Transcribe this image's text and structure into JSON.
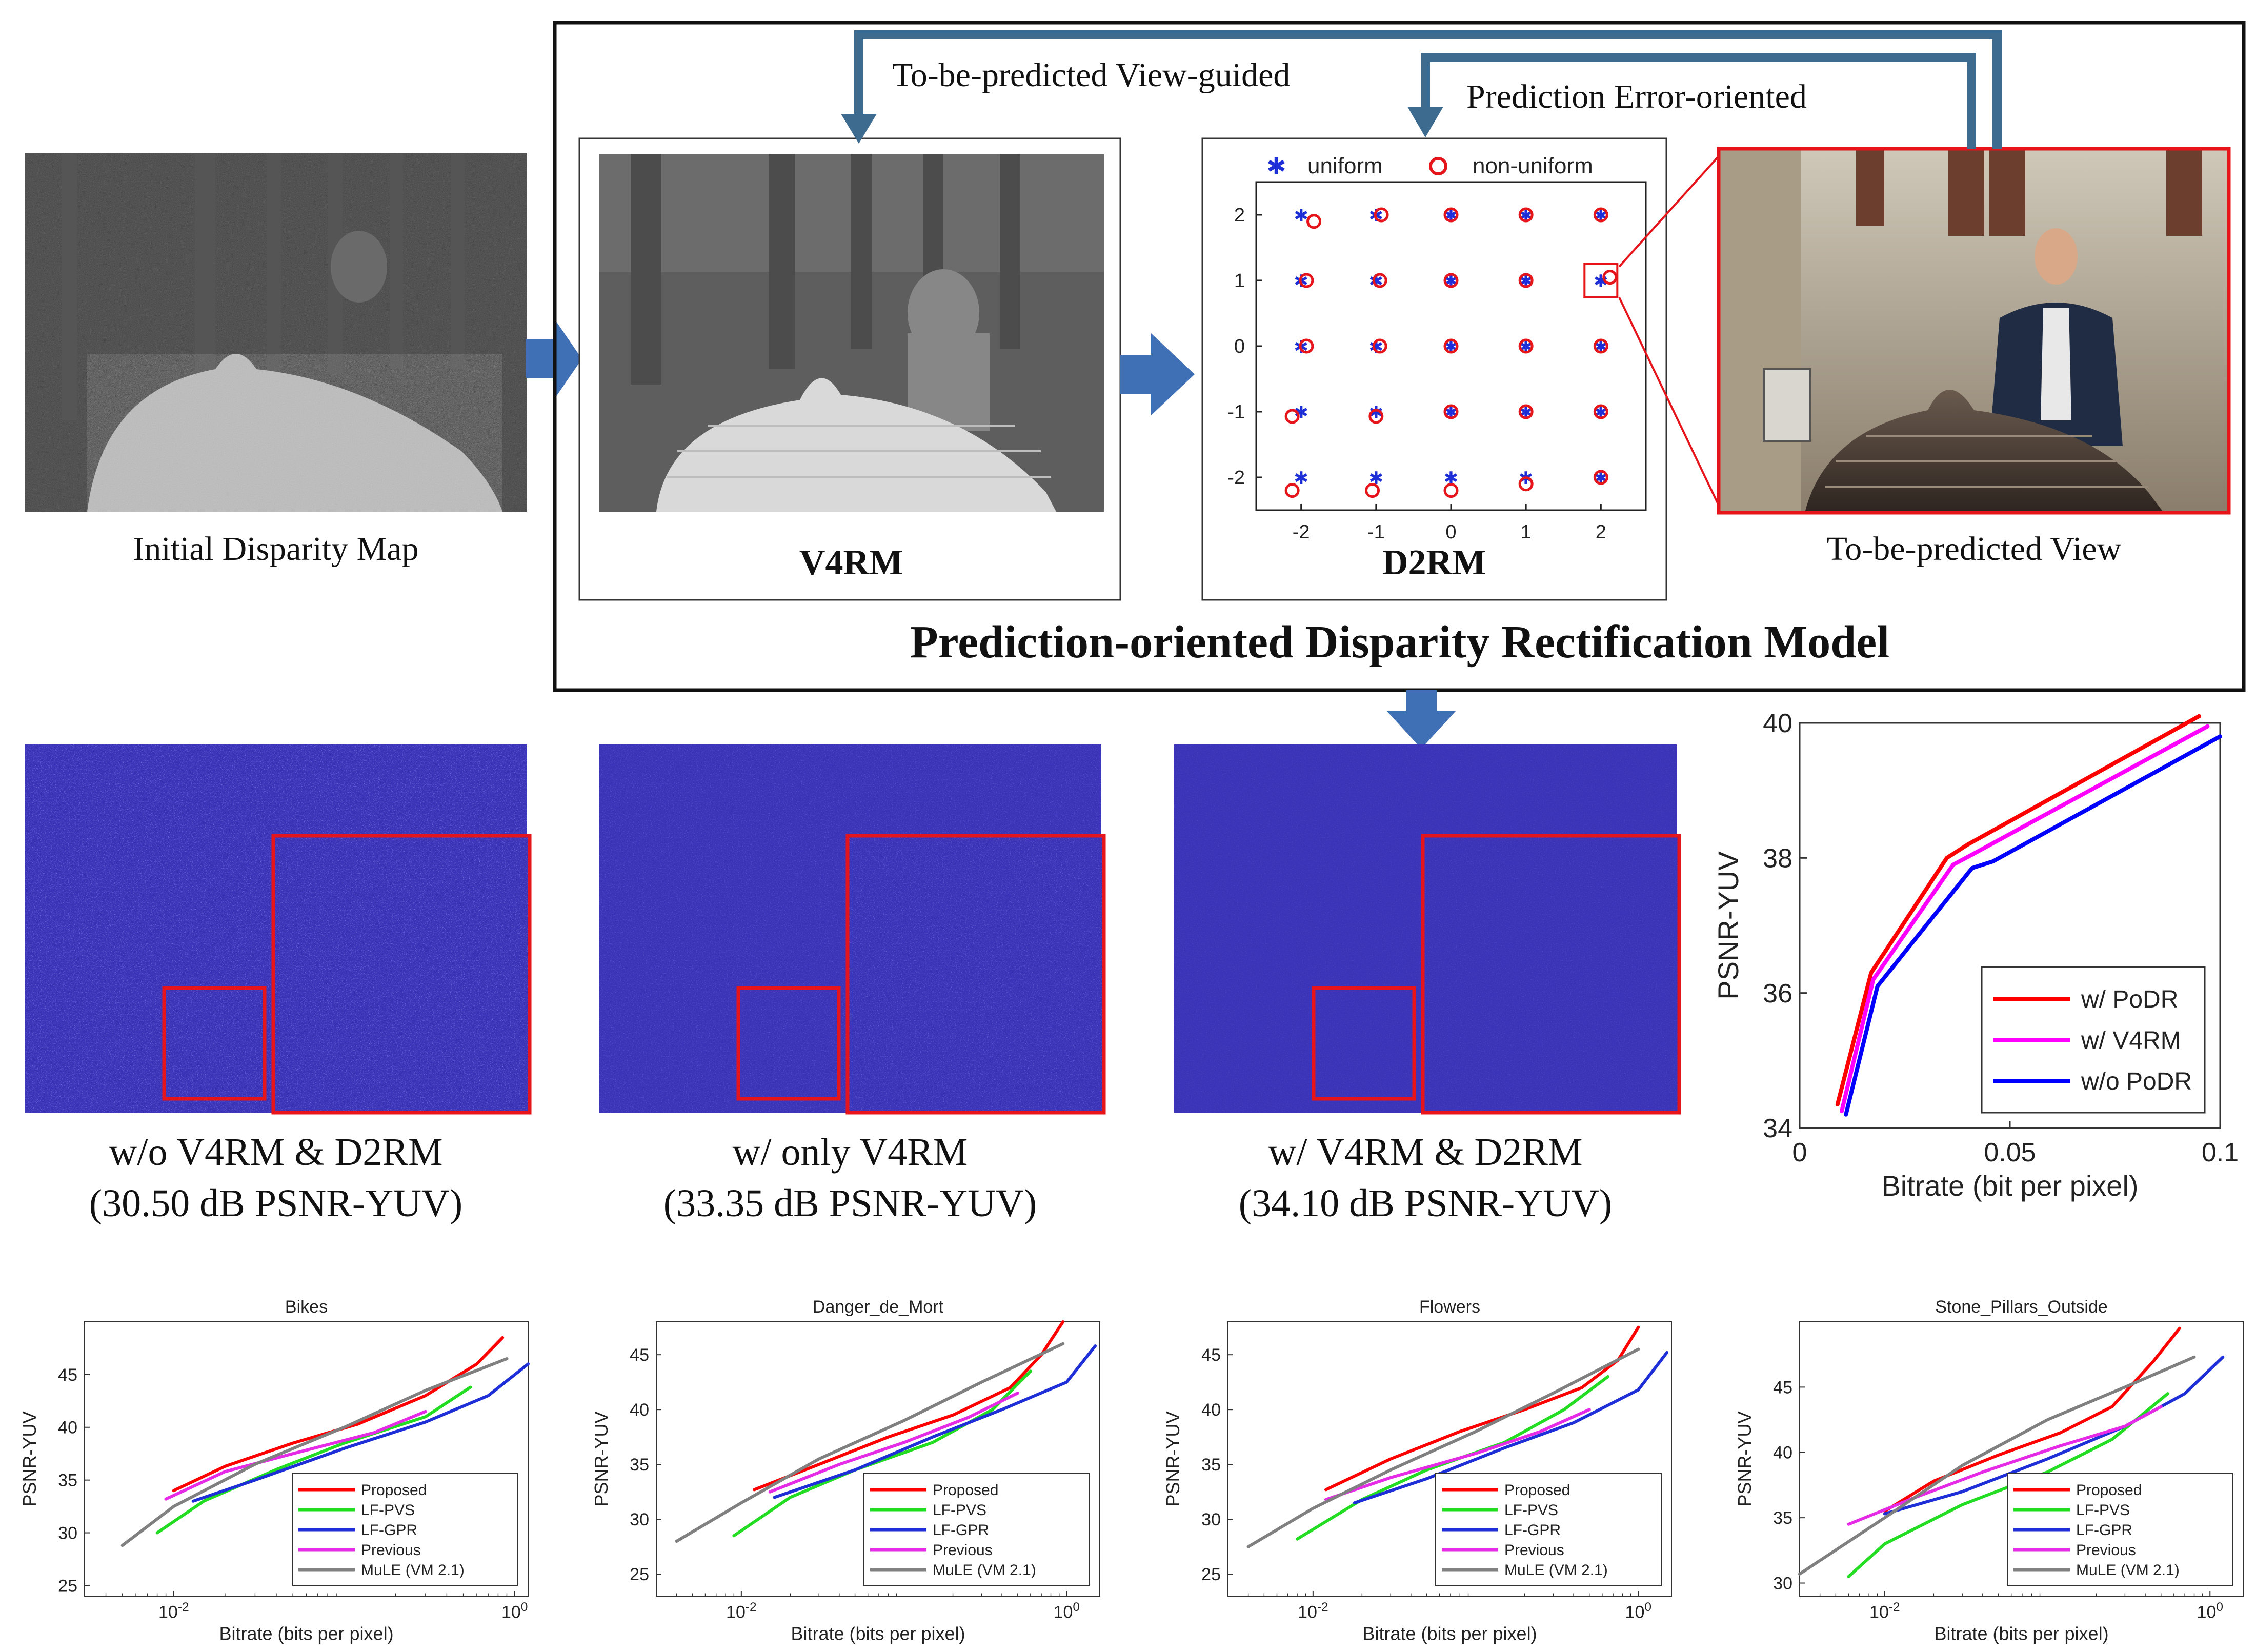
{
  "colors": {
    "arrow": "#3f6fb5",
    "feedback": "#3d6b8f",
    "highlight": "#e6141b",
    "error_map_bg": "#3b33b8",
    "proposed": "#ff0000",
    "lf_pvs": "#22dd22",
    "lf_gpr": "#1f2fd8",
    "previous": "#e62be6",
    "mule": "#808080",
    "w_v4rm": "#ff00ff",
    "wo_podr": "#0000ff"
  },
  "top": {
    "initial_caption": "Initial Disparity Map",
    "v4rm_label": "V4RM",
    "d2rm_label": "D2RM",
    "view_caption": "To-be-predicted View",
    "model_title": "Prediction-oriented Disparity Rectification Model",
    "feedback_view": "To-be-predicted View-guided",
    "feedback_error": "Prediction Error-oriented"
  },
  "d2rm": {
    "legend_uniform": "uniform",
    "legend_nonuniform": "non-uniform",
    "ticks": [
      "-2",
      "-1",
      "0",
      "1",
      "2"
    ],
    "offsets": [
      [
        [
          -2,
          2
        ],
        [
          -1.83,
          1.9
        ]
      ],
      [
        [
          -1,
          2
        ],
        [
          -0.93,
          2
        ]
      ],
      [
        [
          0,
          2
        ],
        [
          0,
          2
        ]
      ],
      [
        [
          1,
          2
        ],
        [
          1,
          2
        ]
      ],
      [
        [
          2,
          2
        ],
        [
          2,
          2
        ]
      ],
      [
        [
          -2,
          1
        ],
        [
          -1.93,
          1
        ]
      ],
      [
        [
          -1,
          1
        ],
        [
          -0.95,
          1
        ]
      ],
      [
        [
          0,
          1
        ],
        [
          0,
          1
        ]
      ],
      [
        [
          1,
          1
        ],
        [
          1,
          1
        ]
      ],
      [
        [
          2,
          1
        ],
        [
          2.12,
          1.05
        ]
      ],
      [
        [
          -2,
          0
        ],
        [
          -1.93,
          0
        ]
      ],
      [
        [
          -1,
          0
        ],
        [
          -0.95,
          0
        ]
      ],
      [
        [
          0,
          0
        ],
        [
          0,
          0
        ]
      ],
      [
        [
          1,
          0
        ],
        [
          1,
          0
        ]
      ],
      [
        [
          2,
          0
        ],
        [
          2,
          0
        ]
      ],
      [
        [
          -2,
          -1
        ],
        [
          -2.12,
          -1.07
        ]
      ],
      [
        [
          -1,
          -1
        ],
        [
          -1,
          -1.07
        ]
      ],
      [
        [
          0,
          -1
        ],
        [
          0,
          -1
        ]
      ],
      [
        [
          1,
          -1
        ],
        [
          1,
          -1
        ]
      ],
      [
        [
          2,
          -1
        ],
        [
          2,
          -1
        ]
      ],
      [
        [
          -2,
          -2
        ],
        [
          -2.12,
          -2.2
        ]
      ],
      [
        [
          -1,
          -2
        ],
        [
          -1.05,
          -2.2
        ]
      ],
      [
        [
          0,
          -2
        ],
        [
          0,
          -2.2
        ]
      ],
      [
        [
          1,
          -2
        ],
        [
          1,
          -2.1
        ]
      ],
      [
        [
          2,
          -2
        ],
        [
          2,
          -2
        ]
      ]
    ]
  },
  "error_maps": [
    {
      "line1": "w/o V4RM & D2RM",
      "line2": "(30.50 dB PSNR-YUV)",
      "intensity": 1.0
    },
    {
      "line1": "w/ only V4RM",
      "line2": "(33.35 dB PSNR-YUV)",
      "intensity": 0.6
    },
    {
      "line1": "w/ V4RM & D2RM",
      "line2": "(34.10 dB PSNR-YUV)",
      "intensity": 0.3
    }
  ],
  "chart_data": [
    {
      "type": "line",
      "title": "",
      "xlabel": "Bitrate (bit per pixel)",
      "ylabel": "PSNR-YUV",
      "xlim": [
        0,
        0.1
      ],
      "ylim": [
        34,
        40
      ],
      "xticks": [
        "0",
        "0.05",
        "0.1"
      ],
      "yticks": [
        "34",
        "36",
        "38",
        "40"
      ],
      "legend_position": "bottom-right",
      "series": [
        {
          "name": "w/ PoDR",
          "color": "#ff0000",
          "x": [
            0.009,
            0.017,
            0.035,
            0.04,
            0.095
          ],
          "y": [
            34.35,
            36.3,
            38.0,
            38.2,
            40.1
          ]
        },
        {
          "name": "w/ V4RM",
          "color": "#ff00ff",
          "x": [
            0.01,
            0.0175,
            0.0365,
            0.041,
            0.097
          ],
          "y": [
            34.25,
            36.2,
            37.9,
            38.05,
            39.95
          ]
        },
        {
          "name": "w/o PoDR",
          "color": "#0000ff",
          "x": [
            0.011,
            0.0185,
            0.041,
            0.046,
            0.1
          ],
          "y": [
            34.2,
            36.1,
            37.85,
            37.95,
            39.8
          ]
        }
      ]
    },
    {
      "type": "line",
      "title": "Bikes",
      "xlabel": "Bitrate (bits per pixel)",
      "ylabel": "PSNR-YUV",
      "xscale": "log",
      "xlim": [
        0.003,
        1.2
      ],
      "ylim": [
        24,
        50
      ],
      "yticks": [
        25,
        30,
        35,
        40,
        45
      ],
      "xticks": [
        {
          "value": 0.01,
          "label": "10-2"
        },
        {
          "value": 1,
          "label": "100"
        }
      ],
      "legend_position": "bottom-right",
      "series": [
        {
          "name": "Proposed",
          "color": "#ff0000",
          "x": [
            0.01,
            0.02,
            0.05,
            0.12,
            0.3,
            0.6,
            0.85
          ],
          "y": [
            34,
            36.3,
            38.5,
            40.3,
            43,
            46,
            48.5
          ]
        },
        {
          "name": "LF-PVS",
          "color": "#22dd22",
          "x": [
            0.008,
            0.015,
            0.04,
            0.1,
            0.3,
            0.55
          ],
          "y": [
            30,
            33,
            36,
            38.5,
            41,
            43.8
          ]
        },
        {
          "name": "LF-GPR",
          "color": "#1f2fd8",
          "x": [
            0.013,
            0.03,
            0.1,
            0.3,
            0.7,
            1.2
          ],
          "y": [
            33,
            35,
            38,
            40.5,
            43,
            46
          ]
        },
        {
          "name": "Previous",
          "color": "#e62be6",
          "x": [
            0.009,
            0.02,
            0.05,
            0.15,
            0.3
          ],
          "y": [
            33.2,
            35.8,
            37.5,
            39.5,
            41.5
          ]
        },
        {
          "name": "MuLE (VM 2.1)",
          "color": "#808080",
          "x": [
            0.005,
            0.01,
            0.03,
            0.1,
            0.3,
            0.9
          ],
          "y": [
            28.8,
            32.5,
            36.5,
            40,
            43.5,
            46.5
          ]
        }
      ]
    },
    {
      "type": "line",
      "title": "Danger_de_Mort",
      "xlabel": "Bitrate (bits per pixel)",
      "ylabel": "PSNR-YUV",
      "xscale": "log",
      "xlim": [
        0.003,
        1.6
      ],
      "ylim": [
        23,
        48
      ],
      "yticks": [
        25,
        30,
        35,
        40,
        45
      ],
      "xticks": [
        {
          "value": 0.01,
          "label": "10-2"
        },
        {
          "value": 1,
          "label": "100"
        }
      ],
      "legend_position": "bottom-right",
      "series": [
        {
          "name": "Proposed",
          "color": "#ff0000",
          "x": [
            0.012,
            0.03,
            0.08,
            0.2,
            0.45,
            0.7,
            0.95
          ],
          "y": [
            32.7,
            35,
            37.5,
            39.5,
            42,
            45,
            48
          ]
        },
        {
          "name": "LF-PVS",
          "color": "#22dd22",
          "x": [
            0.009,
            0.02,
            0.05,
            0.15,
            0.35,
            0.6
          ],
          "y": [
            28.5,
            32,
            34.5,
            37,
            40,
            43.5
          ]
        },
        {
          "name": "LF-GPR",
          "color": "#1f2fd8",
          "x": [
            0.016,
            0.05,
            0.15,
            0.4,
            1,
            1.5
          ],
          "y": [
            32,
            34.5,
            37.5,
            40,
            42.5,
            45.8
          ]
        },
        {
          "name": "Previous",
          "color": "#e62be6",
          "x": [
            0.015,
            0.04,
            0.1,
            0.25,
            0.5
          ],
          "y": [
            32.5,
            35,
            37,
            39.3,
            41.5
          ]
        },
        {
          "name": "MuLE (VM 2.1)",
          "color": "#808080",
          "x": [
            0.004,
            0.01,
            0.03,
            0.1,
            0.3,
            0.95
          ],
          "y": [
            28,
            31.5,
            35.5,
            39,
            42.5,
            46
          ]
        }
      ]
    },
    {
      "type": "line",
      "title": "Flowers",
      "xlabel": "Bitrate (bits per pixel)",
      "ylabel": "PSNR-YUV",
      "xscale": "log",
      "xlim": [
        0.003,
        1.6
      ],
      "ylim": [
        23,
        48
      ],
      "yticks": [
        25,
        30,
        35,
        40,
        45
      ],
      "xticks": [
        {
          "value": 0.01,
          "label": "10-2"
        },
        {
          "value": 1,
          "label": "100"
        }
      ],
      "legend_position": "bottom-right",
      "series": [
        {
          "name": "Proposed",
          "color": "#ff0000",
          "x": [
            0.012,
            0.03,
            0.08,
            0.2,
            0.45,
            0.75,
            1.0
          ],
          "y": [
            32.7,
            35.5,
            38,
            40,
            42,
            44.5,
            47.5
          ]
        },
        {
          "name": "LF-PVS",
          "color": "#22dd22",
          "x": [
            0.008,
            0.02,
            0.05,
            0.15,
            0.35,
            0.65
          ],
          "y": [
            28.2,
            31.8,
            34.5,
            37,
            40,
            43
          ]
        },
        {
          "name": "LF-GPR",
          "color": "#1f2fd8",
          "x": [
            0.018,
            0.05,
            0.15,
            0.4,
            1,
            1.5
          ],
          "y": [
            31.5,
            33.7,
            36.5,
            38.8,
            41.8,
            45.2
          ]
        },
        {
          "name": "Previous",
          "color": "#e62be6",
          "x": [
            0.012,
            0.03,
            0.1,
            0.25,
            0.5
          ],
          "y": [
            31.8,
            33.8,
            36,
            38,
            40
          ]
        },
        {
          "name": "MuLE (VM 2.1)",
          "color": "#808080",
          "x": [
            0.004,
            0.01,
            0.03,
            0.1,
            0.3,
            1.0
          ],
          "y": [
            27.5,
            31,
            34.5,
            38,
            41.5,
            45.5
          ]
        }
      ]
    },
    {
      "type": "line",
      "title": "Stone_Pillars_Outside",
      "xlabel": "Bitrate (bits per pixel)",
      "ylabel": "PSNR-YUV",
      "xscale": "log",
      "xlim": [
        0.003,
        1.6
      ],
      "ylim": [
        29,
        50
      ],
      "yticks": [
        30,
        35,
        40,
        45
      ],
      "xticks": [
        {
          "value": 0.01,
          "label": "10-2"
        },
        {
          "value": 1,
          "label": "100"
        }
      ],
      "legend_position": "bottom-right",
      "series": [
        {
          "name": "Proposed",
          "color": "#ff0000",
          "x": [
            0.01,
            0.02,
            0.05,
            0.12,
            0.25,
            0.45,
            0.65
          ],
          "y": [
            35.5,
            37.8,
            39.8,
            41.5,
            43.5,
            47,
            49.5
          ]
        },
        {
          "name": "LF-PVS",
          "color": "#22dd22",
          "x": [
            0.006,
            0.01,
            0.03,
            0.1,
            0.25,
            0.55
          ],
          "y": [
            30.5,
            33,
            36,
            38.5,
            41,
            44.5
          ]
        },
        {
          "name": "LF-GPR",
          "color": "#1f2fd8",
          "x": [
            0.01,
            0.03,
            0.1,
            0.3,
            0.7,
            1.2
          ],
          "y": [
            35.3,
            37,
            39.5,
            42,
            44.5,
            47.3
          ]
        },
        {
          "name": "Previous",
          "color": "#e62be6",
          "x": [
            0.006,
            0.015,
            0.04,
            0.12,
            0.3,
            0.5
          ],
          "y": [
            34.5,
            36.5,
            38.5,
            40.5,
            42,
            43.5
          ]
        },
        {
          "name": "MuLE (VM 2.1)",
          "color": "#808080",
          "x": [
            0.003,
            0.01,
            0.03,
            0.1,
            0.3,
            0.8
          ],
          "y": [
            30.7,
            35,
            39,
            42.5,
            45,
            47.3
          ]
        }
      ]
    }
  ]
}
